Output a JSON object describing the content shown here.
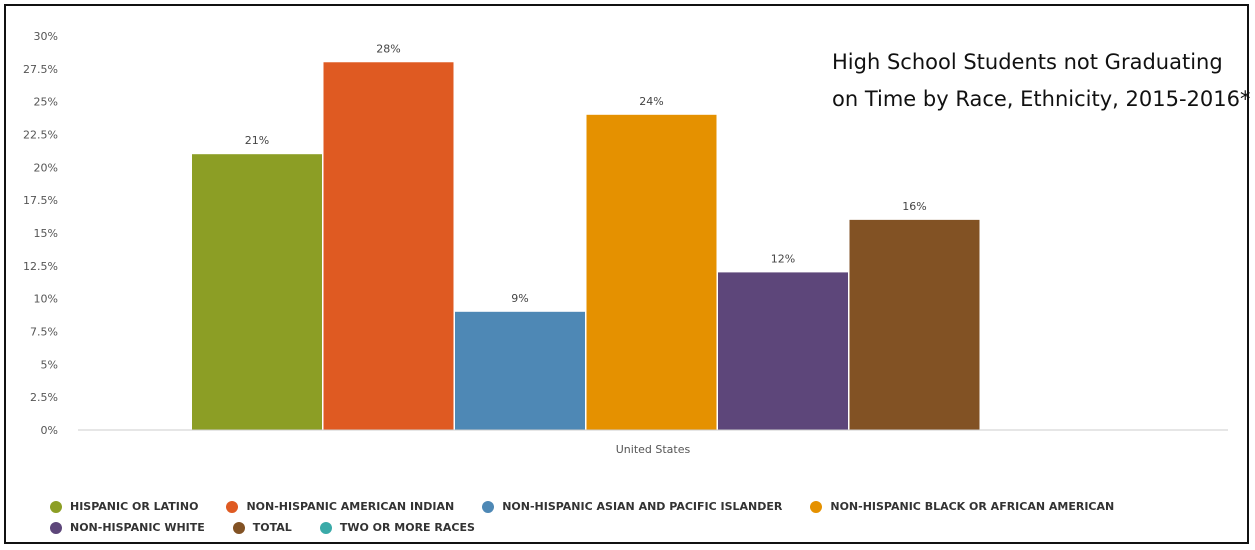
{
  "chart_data": {
    "type": "bar",
    "title": "High School Students not Graduating on Time by Race, Ethnicity, 2015-2016*",
    "categories": [
      "United States"
    ],
    "ylim": [
      0,
      30
    ],
    "y_ticks": [
      "0%",
      "2.5%",
      "5%",
      "7.5%",
      "10%",
      "12.5%",
      "15%",
      "17.5%",
      "20%",
      "22.5%",
      "25%",
      "27.5%",
      "30%"
    ],
    "y_tick_values": [
      0,
      2.5,
      5,
      7.5,
      10,
      12.5,
      15,
      17.5,
      20,
      22.5,
      25,
      27.5,
      30
    ],
    "grid": false,
    "legend_position": "bottom",
    "series": [
      {
        "name": "HISPANIC OR LATINO",
        "values": [
          21
        ],
        "label": "21%",
        "color": "#8c9e25"
      },
      {
        "name": "NON-HISPANIC AMERICAN INDIAN",
        "values": [
          28
        ],
        "label": "28%",
        "color": "#df5a22"
      },
      {
        "name": "NON-HISPANIC ASIAN AND PACIFIC ISLANDER",
        "values": [
          9
        ],
        "label": "9%",
        "color": "#4e88b5"
      },
      {
        "name": "NON-HISPANIC BLACK OR AFRICAN AMERICAN",
        "values": [
          24
        ],
        "label": "24%",
        "color": "#e59100"
      },
      {
        "name": "NON-HISPANIC WHITE",
        "values": [
          12
        ],
        "label": "12%",
        "color": "#5d467a"
      },
      {
        "name": "TOTAL",
        "values": [
          16
        ],
        "label": "16%",
        "color": "#825224"
      },
      {
        "name": "TWO OR MORE RACES",
        "values": [
          null
        ],
        "label": "",
        "color": "#3aaaa8"
      }
    ]
  }
}
